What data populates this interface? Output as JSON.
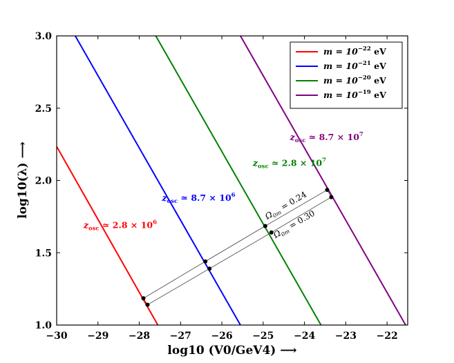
{
  "chart_data": {
    "type": "line",
    "xlabel": "log10 (V0/GeV4) ⟶",
    "ylabel": "log10(λ) ⟶",
    "xlim": [
      -30,
      -21.5
    ],
    "ylim": [
      1.0,
      3.0
    ],
    "x_ticks": [
      -30,
      -29,
      -28,
      -27,
      -26,
      -25,
      -24,
      -23,
      -22
    ],
    "x_tick_labels": [
      "−30",
      "−29",
      "−28",
      "−27",
      "−26",
      "−25",
      "−24",
      "−23",
      "−22"
    ],
    "y_ticks": [
      1.0,
      1.5,
      2.0,
      2.5,
      3.0
    ],
    "y_tick_labels": [
      "1.0",
      "1.5",
      "2.0",
      "2.5",
      "3.0"
    ],
    "grid": false,
    "legend_position": "top-right",
    "series": [
      {
        "name": "m = 10^-22 eV",
        "legend_main": "m = 10",
        "legend_exp": "−22",
        "legend_unit": " eV",
        "color": "#ff0000",
        "x": [
          -30.0,
          -27.55
        ],
        "y": [
          2.235,
          1.0
        ],
        "label_main": "z",
        "label_sub": "osc",
        "label_rest": " ≃ 2.8 × 10",
        "label_exp": "6"
      },
      {
        "name": "m = 10^-21 eV",
        "legend_main": "m = 10",
        "legend_exp": "−21",
        "legend_unit": " eV",
        "color": "#0000ff",
        "x": [
          -29.55,
          -25.55
        ],
        "y": [
          3.0,
          1.0
        ],
        "label_main": "z",
        "label_sub": "osc",
        "label_rest": " ≃ 8.7 × 10",
        "label_exp": "6"
      },
      {
        "name": "m = 10^-20 eV",
        "legend_main": "m = 10",
        "legend_exp": "−20",
        "legend_unit": " eV",
        "color": "#008000",
        "x": [
          -27.6,
          -23.6
        ],
        "y": [
          3.0,
          1.0
        ],
        "label_main": "z",
        "label_sub": "osc",
        "label_rest": " ≃ 2.8 × 10",
        "label_exp": "7"
      },
      {
        "name": "m = 10^-19 eV",
        "legend_main": "m = 10",
        "legend_exp": "−19",
        "legend_unit": " eV",
        "color": "#800080",
        "x": [
          -25.55,
          -21.55
        ],
        "y": [
          3.0,
          1.0
        ],
        "label_main": "z",
        "label_sub": "osc",
        "label_rest": " ≃ 8.7 × 10",
        "label_exp": "7"
      }
    ],
    "omega_lines": [
      {
        "label_main": "Ω",
        "label_sub": "0m",
        "label_rest": " = 0.24",
        "points": [
          [
            -27.9,
            1.185
          ],
          [
            -26.4,
            1.44
          ],
          [
            -24.95,
            1.685
          ],
          [
            -23.45,
            1.935
          ]
        ]
      },
      {
        "label_main": "Ω",
        "label_sub": "0m",
        "label_rest": " = 0.30",
        "points": [
          [
            -27.8,
            1.14
          ],
          [
            -26.3,
            1.39
          ],
          [
            -24.8,
            1.64
          ],
          [
            -23.35,
            1.885
          ]
        ]
      }
    ]
  }
}
